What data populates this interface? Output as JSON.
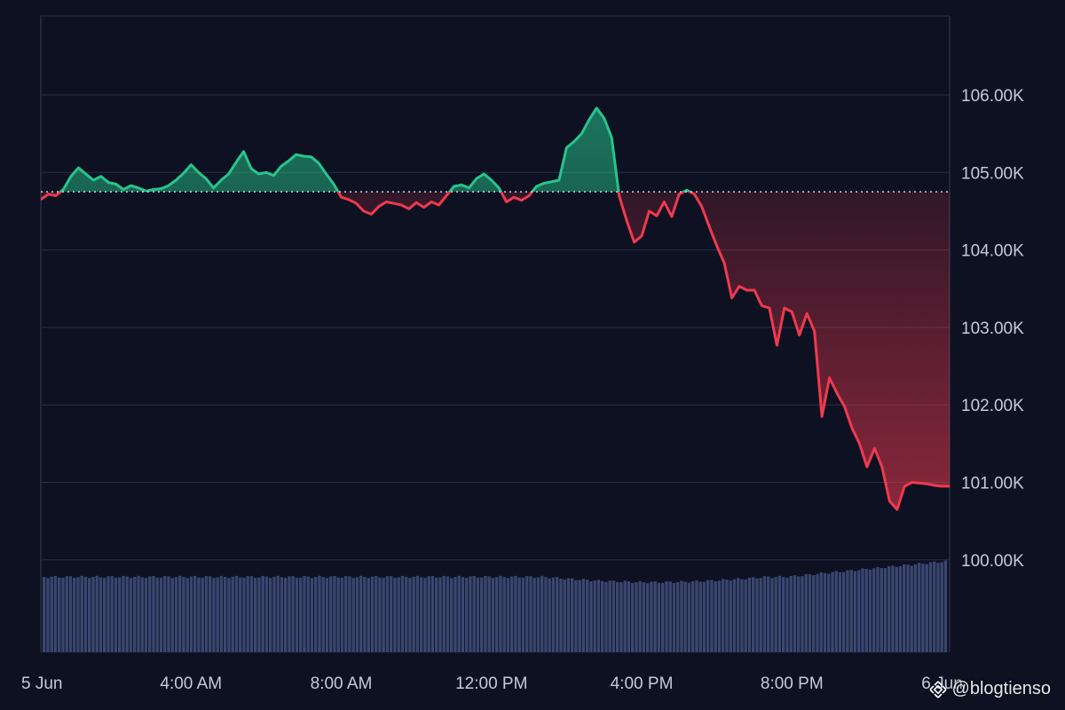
{
  "colors": {
    "background": "#0d1121",
    "grid": "#2a3044",
    "up_line": "#27c58b",
    "down_line": "#f0394f",
    "baseline": "#d0d4de",
    "volume": "#3a4670",
    "axis_text": "#c7cbd6"
  },
  "watermark": {
    "icon": "binance-logo-icon",
    "text": "@blogtienso"
  },
  "chart_data": {
    "type": "area",
    "baseline_value": 104750,
    "ylim": [
      99000,
      107000
    ],
    "grid": true,
    "x_axis": {
      "range_hours": [
        0,
        24.2
      ],
      "tick_labels": [
        {
          "label": "5 Jun",
          "hour": 0
        },
        {
          "label": "4:00 AM",
          "hour": 4
        },
        {
          "label": "8:00 AM",
          "hour": 8
        },
        {
          "label": "12:00 PM",
          "hour": 12
        },
        {
          "label": "4:00 PM",
          "hour": 16
        },
        {
          "label": "8:00 PM",
          "hour": 20
        },
        {
          "label": "6 Jun",
          "hour": 24
        }
      ]
    },
    "y_axis": {
      "position": "right",
      "tick_labels": [
        {
          "label": "106.00K",
          "value": 106000
        },
        {
          "label": "105.00K",
          "value": 105000
        },
        {
          "label": "104.00K",
          "value": 104000
        },
        {
          "label": "103.00K",
          "value": 103000
        },
        {
          "label": "102.00K",
          "value": 102000
        },
        {
          "label": "101.00K",
          "value": 101000
        },
        {
          "label": "100.00K",
          "value": 100000
        }
      ]
    },
    "series": [
      {
        "x": [
          0,
          0.2,
          0.4,
          0.6,
          0.8,
          1.0,
          1.2,
          1.4,
          1.6,
          1.8,
          2.0,
          2.2,
          2.4,
          2.6,
          2.8,
          3.0,
          3.2,
          3.4,
          3.6,
          3.8,
          4.0,
          4.2,
          4.4,
          4.6,
          4.8,
          5.0,
          5.2,
          5.4,
          5.6,
          5.8,
          6.0,
          6.2,
          6.4,
          6.6,
          6.8,
          7.0,
          7.2,
          7.4,
          7.6,
          7.8,
          8.0,
          8.2,
          8.4,
          8.6,
          8.8,
          9.0,
          9.2,
          9.4,
          9.6,
          9.8,
          10.0,
          10.2,
          10.4,
          10.6,
          10.8,
          11.0,
          11.2,
          11.4,
          11.6,
          11.8,
          12.0,
          12.2,
          12.4,
          12.6,
          12.8,
          13.0,
          13.2,
          13.4,
          13.6,
          13.8,
          14.0,
          14.2,
          14.4,
          14.6,
          14.8,
          15.0,
          15.2,
          15.4,
          15.6,
          15.8,
          16.0,
          16.2,
          16.4,
          16.6,
          16.8,
          17.0,
          17.2,
          17.4,
          17.6,
          17.8,
          18.0,
          18.2,
          18.4,
          18.6,
          18.8,
          19.0,
          19.2,
          19.4,
          19.6,
          19.8,
          20.0,
          20.2,
          20.4,
          20.6,
          20.8,
          21.0,
          21.2,
          21.4,
          21.6,
          21.8,
          22.0,
          22.2,
          22.4,
          22.6,
          22.8,
          23.0,
          23.2,
          23.4,
          23.6,
          23.8,
          24.0,
          24.2
        ],
        "values": [
          104650,
          104720,
          104700,
          104780,
          104950,
          105060,
          104980,
          104900,
          104950,
          104870,
          104850,
          104780,
          104830,
          104800,
          104760,
          104780,
          104790,
          104830,
          104900,
          104990,
          105100,
          105000,
          104920,
          104800,
          104900,
          104980,
          105130,
          105270,
          105050,
          104980,
          105000,
          104960,
          105080,
          105150,
          105230,
          105210,
          105200,
          105120,
          104980,
          104850,
          104680,
          104650,
          104600,
          104500,
          104460,
          104560,
          104620,
          104600,
          104580,
          104530,
          104610,
          104550,
          104620,
          104580,
          104700,
          104820,
          104840,
          104800,
          104920,
          104980,
          104900,
          104800,
          104620,
          104680,
          104640,
          104700,
          104820,
          104860,
          104880,
          104900,
          105320,
          105400,
          105500,
          105680,
          105830,
          105700,
          105450,
          104700,
          104380,
          104100,
          104180,
          104500,
          104440,
          104620,
          104430,
          104720,
          104770,
          104720,
          104560,
          104300,
          104050,
          103830,
          103380,
          103530,
          103480,
          103480,
          103280,
          103250,
          102770,
          103250,
          103200,
          102900,
          103180,
          102950,
          101850,
          102350,
          102150,
          101980,
          101700,
          101500,
          101200,
          101440,
          101200,
          100760,
          100650,
          100950,
          101000,
          100990,
          100980,
          100960,
          100950,
          100950
        ]
      }
    ],
    "volume": {
      "x_range_hours": [
        0,
        24.2
      ],
      "bar_count": 240,
      "approx_heights_relative": "nearly flat, slight rise near the end"
    }
  }
}
